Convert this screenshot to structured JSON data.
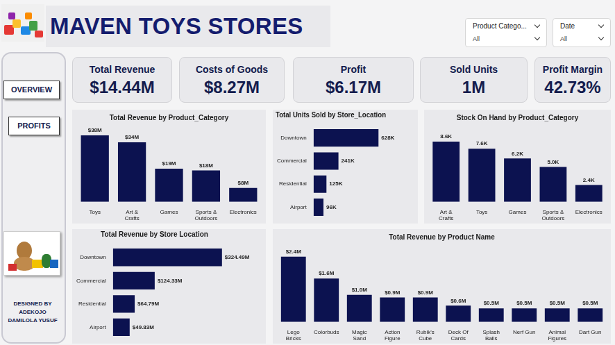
{
  "header": {
    "title": "MAVEN TOYS STORES"
  },
  "filters": [
    {
      "label": "Product Catego...",
      "value": "All"
    },
    {
      "label": "Date",
      "value": "All"
    }
  ],
  "nav": [
    "OVERVIEW",
    "PROFITS"
  ],
  "credit": [
    "DESIGNED BY",
    "ADEKOJO",
    "DAMILOLA YUSUF"
  ],
  "kpis": [
    {
      "label": "Total Revenue",
      "value": "$14.44M"
    },
    {
      "label": "Costs of Goods",
      "value": "$8.27M"
    },
    {
      "label": "Profit",
      "value": "$6.17M"
    },
    {
      "label": "Sold Units",
      "value": "1M"
    },
    {
      "label": "Profit Margin",
      "value": "42.73%"
    }
  ],
  "chart_data": [
    {
      "type": "bar",
      "title": "Total Revenue by Product_Category",
      "categories": [
        "Toys",
        "Art & Crafts",
        "Games",
        "Sports & Outdoors",
        "Electronics"
      ],
      "values": [
        38,
        34,
        19,
        18,
        8
      ],
      "value_labels": [
        "$38M",
        "$34M",
        "$19M",
        "$18M",
        "$8M"
      ],
      "color": "#0c1250",
      "ylim": [
        0,
        40
      ],
      "grid": false,
      "data_labels": true,
      "tick_labels": "x"
    },
    {
      "type": "bar",
      "title": "Total Units Sold by Store_Location",
      "orientation": "horizontal",
      "categories": [
        "Downtown",
        "Commercial",
        "Residential",
        "Airport"
      ],
      "values": [
        628,
        241,
        125,
        96
      ],
      "value_labels": [
        "628K",
        "241K",
        "125K",
        "96K"
      ],
      "color": "#0c1250",
      "xlim": [
        0,
        700
      ],
      "grid": false,
      "data_labels": true,
      "tick_labels": "y"
    },
    {
      "type": "bar",
      "title": "Stock On Hand by Product_Category",
      "categories": [
        "Art & Crafts",
        "Toys",
        "Games",
        "Sports & Outdoors",
        "Electronics"
      ],
      "values": [
        8.6,
        7.6,
        6.2,
        5.0,
        2.4
      ],
      "value_labels": [
        "8.6K",
        "7.6K",
        "6.2K",
        "5.0K",
        "2.4K"
      ],
      "color": "#0c1250",
      "ylim": [
        0,
        10
      ],
      "grid": false,
      "data_labels": true,
      "tick_labels": "x"
    },
    {
      "type": "bar",
      "title": "Total Revenue by Store Location",
      "orientation": "horizontal",
      "categories": [
        "Downtown",
        "Commercial",
        "Residential",
        "Airport"
      ],
      "values": [
        324.49,
        124.33,
        64.79,
        49.83
      ],
      "value_labels": [
        "$324.49M",
        "$124.33M",
        "$64.79M",
        "$49.83M"
      ],
      "color": "#0c1250",
      "xlim": [
        0,
        360
      ],
      "grid": false,
      "data_labels": true,
      "tick_labels": "y"
    },
    {
      "type": "bar",
      "title": "Total Revenue by Product Name",
      "categories": [
        "Lego Bricks",
        "Colorbuds",
        "Magic Sand",
        "Action Figure",
        "Rubik's Cube",
        "Deck Of Cards",
        "Splash Balls",
        "Nerf Gun",
        "Animal Figures",
        "Dart Gun"
      ],
      "values": [
        2.4,
        1.6,
        1.0,
        0.9,
        0.9,
        0.6,
        0.5,
        0.5,
        0.5,
        0.5
      ],
      "value_labels": [
        "$2.4M",
        "$1.6M",
        "$1.0M",
        "$0.9M",
        "$0.9M",
        "$0.6M",
        "$0.5M",
        "$0.5M",
        "$0.5M",
        "$0.5M"
      ],
      "color": "#0c1250",
      "ylim": [
        0,
        2.6
      ],
      "grid": false,
      "data_labels": true,
      "tick_labels": "x"
    }
  ]
}
